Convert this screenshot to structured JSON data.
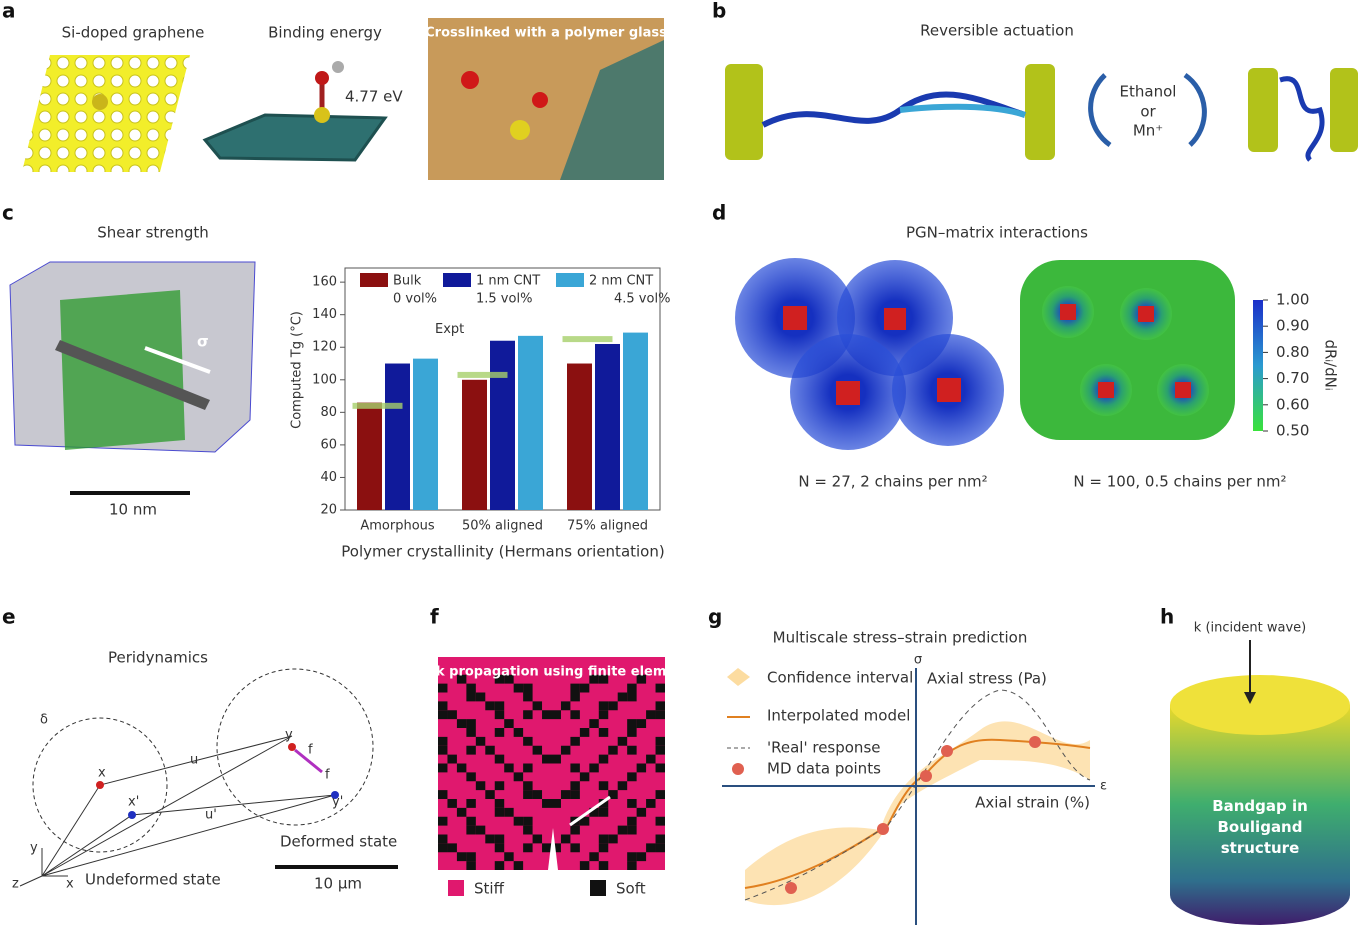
{
  "panel_a": {
    "letter": "a",
    "labels": [
      "Si-doped graphene",
      "Binding energy",
      "Crosslinked with a polymer glass"
    ],
    "energy": "4.77 eV"
  },
  "panel_b": {
    "letter": "b",
    "title": "Reversible actuation",
    "stimulus": [
      "Ethanol",
      "or",
      "Mn⁺"
    ]
  },
  "panel_c": {
    "letter": "c",
    "title": "Shear strength",
    "sigma": "σ",
    "scale": "10 nm"
  },
  "chart_data": {
    "type": "bar",
    "ylabel": "Computed Tg (°C)",
    "xlabel": "Polymer crystallinity (Hermans orientation)",
    "categories": [
      "Amorphous",
      "50% aligned",
      "75% aligned"
    ],
    "series": [
      {
        "name": "Bulk",
        "volume": "0 vol%",
        "color": "#8b1010",
        "values": [
          86,
          100,
          110
        ]
      },
      {
        "name": "1 nm CNT",
        "volume": "1.5 vol%",
        "color": "#101a9a",
        "values": [
          110,
          124,
          122
        ]
      },
      {
        "name": "2 nm CNT",
        "volume": "4.5 vol%",
        "color": "#3aa6d6",
        "values": [
          113,
          127,
          129
        ]
      }
    ],
    "expt": {
      "label": "Expt",
      "color": "#a6cf6a",
      "values": [
        84,
        103,
        125
      ]
    },
    "ylim": [
      20,
      165
    ],
    "yticks": [
      20,
      40,
      60,
      80,
      100,
      120,
      140,
      160
    ]
  },
  "panel_d": {
    "letter": "d",
    "title": "PGN–matrix interactions",
    "captions": [
      "N = 27, 2 chains per nm²",
      "N = 100, 0.5 chains per nm²"
    ],
    "colorbar": {
      "label": "dRᵢ/dNᵢ",
      "lim": [
        0.5,
        1.0
      ],
      "ticks": [
        {
          "value": 1,
          "label": "1.00"
        },
        {
          "value": 0.9,
          "label": "0.90"
        },
        {
          "value": 0.8,
          "label": "0.80"
        },
        {
          "value": 0.7,
          "label": "0.70"
        },
        {
          "value": 0.6,
          "label": "0.60"
        },
        {
          "value": 0.5,
          "label": "0.50"
        }
      ]
    }
  },
  "panel_e": {
    "letter": "e",
    "title": "Peridynamics",
    "symbols": [
      "δ",
      "x",
      "x'",
      "u",
      "u'",
      "y",
      "y'",
      "f",
      "f"
    ],
    "axes": [
      "y",
      "z",
      "x"
    ],
    "states": [
      "Undeformed state",
      "Deformed state"
    ],
    "scale": "10 μm"
  },
  "panel_f": {
    "letter": "f",
    "title": "Crack propagation using finite elements",
    "legend": [
      "Stiff",
      "Soft"
    ]
  },
  "panel_g": {
    "letter": "g",
    "title": "Multiscale stress–strain prediction",
    "legend": [
      "Confidence interval",
      "Interpolated model",
      "'Real' response",
      "MD data points"
    ],
    "axes": [
      "σ",
      "Axial stress (Pa)",
      "ε",
      "Axial strain (%)"
    ]
  },
  "panel_h": {
    "letter": "h",
    "label": "k (incident wave)",
    "text": "Bandgap in Bouligand structure"
  }
}
